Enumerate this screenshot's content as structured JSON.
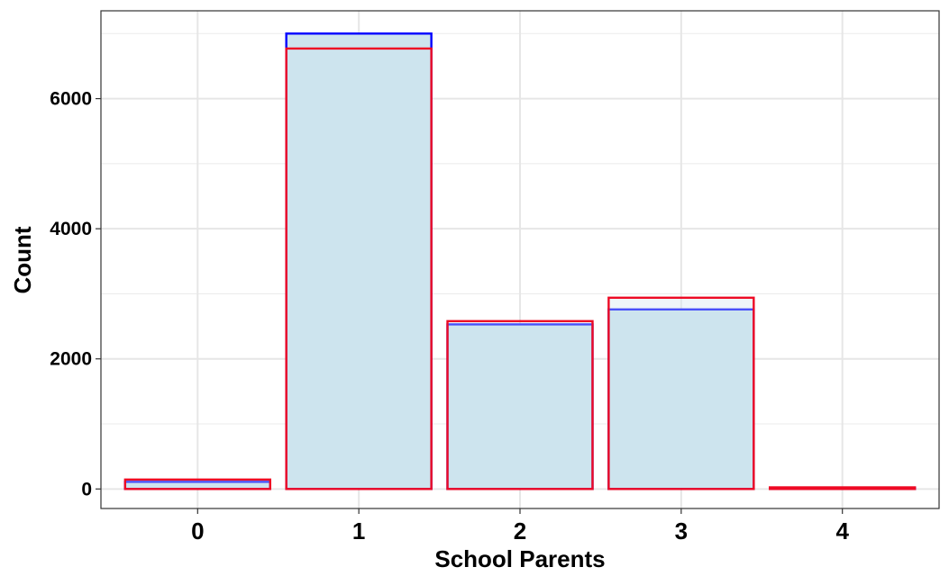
{
  "chart_data": {
    "type": "bar",
    "title": "",
    "xlabel": "School Parents",
    "ylabel": "Count",
    "categories": [
      "0",
      "1",
      "2",
      "3",
      "4"
    ],
    "yticks": [
      0,
      2000,
      4000,
      6000
    ],
    "yticks_labels": [
      "0",
      "2000",
      "4000",
      "6000"
    ],
    "ylim": [
      -300,
      7350
    ],
    "grid": true,
    "legend": "none",
    "fill_color": "#cde4ee",
    "series": [
      {
        "values": [
          110,
          7000,
          2530,
          2760,
          20
        ],
        "color": "#0000ff"
      },
      {
        "values": [
          145,
          6770,
          2580,
          2940,
          25
        ],
        "color": "#ee0a24"
      }
    ]
  }
}
